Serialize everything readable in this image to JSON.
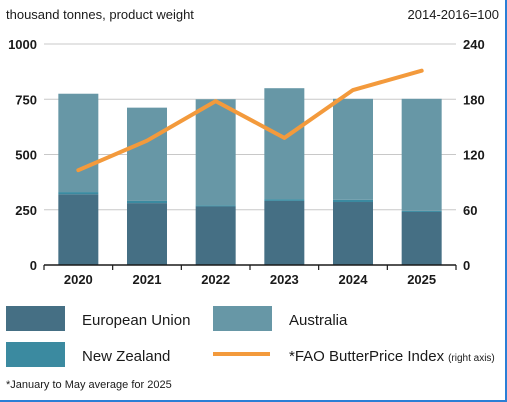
{
  "chart_data": {
    "type": "bar",
    "ylabel": "thousand tonnes, product weight",
    "y2label": "2014-2016=100",
    "ylim": [
      0,
      1000
    ],
    "y2lim": [
      0,
      240
    ],
    "yticks": [
      "0",
      "250",
      "500",
      "750",
      "1000"
    ],
    "y2ticks": [
      "0",
      "60",
      "120",
      "180",
      "240"
    ],
    "categories": [
      "2020",
      "2021",
      "2022",
      "2023",
      "2024",
      "2025"
    ],
    "stacked": true,
    "grid": true,
    "series": [
      {
        "name": "European Union",
        "kind": "bar",
        "values": [
          320,
          280,
          265,
          290,
          285,
          240
        ],
        "color": "#456f84"
      },
      {
        "name": "New Zealand",
        "kind": "bar",
        "values": [
          10,
          10,
          5,
          8,
          10,
          5
        ],
        "color": "#3b8aa0"
      },
      {
        "name": "Australia",
        "kind": "bar",
        "values": [
          445,
          422,
          480,
          502,
          457,
          507
        ],
        "color": "#6797a6"
      },
      {
        "name": "*FAO ButterPrice Index",
        "kind": "line",
        "axis": "right",
        "values": [
          103,
          135,
          178,
          138,
          190,
          211
        ],
        "color": "#f39a3c"
      }
    ],
    "legend": {
      "position": "bottom",
      "items": [
        {
          "label": "European Union",
          "color": "#456f84",
          "shape": "box"
        },
        {
          "label": "Australia",
          "color": "#6797a6",
          "shape": "box"
        },
        {
          "label": "New Zealand",
          "color": "#3b8aa0",
          "shape": "box"
        },
        {
          "label": "*FAO ButterPrice Index",
          "suffix": "(right axis)",
          "color": "#f39a3c",
          "shape": "line"
        }
      ]
    },
    "footnote": "*January to May average for 2025"
  }
}
